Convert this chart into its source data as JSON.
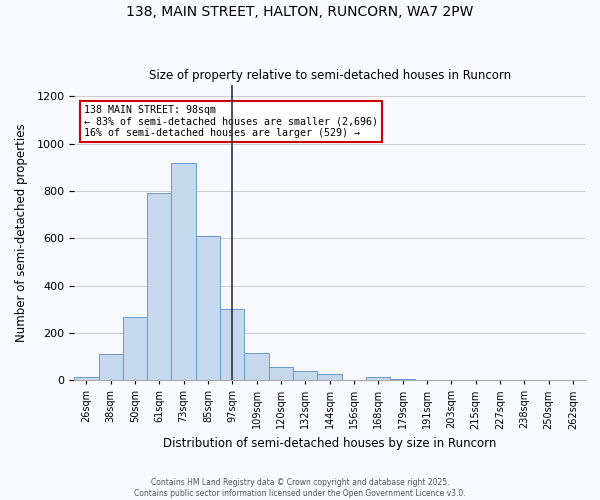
{
  "title": "138, MAIN STREET, HALTON, RUNCORN, WA7 2PW",
  "subtitle": "Size of property relative to semi-detached houses in Runcorn",
  "xlabel": "Distribution of semi-detached houses by size in Runcorn",
  "ylabel": "Number of semi-detached properties",
  "bar_color": "#c5d8ed",
  "bar_edge_color": "#6699cc",
  "vline_color": "#333333",
  "annotation_box_color": "#cc0000",
  "bins": [
    "26sqm",
    "38sqm",
    "50sqm",
    "61sqm",
    "73sqm",
    "85sqm",
    "97sqm",
    "109sqm",
    "120sqm",
    "132sqm",
    "144sqm",
    "156sqm",
    "168sqm",
    "179sqm",
    "191sqm",
    "203sqm",
    "215sqm",
    "227sqm",
    "238sqm",
    "250sqm",
    "262sqm"
  ],
  "values": [
    15,
    110,
    265,
    790,
    920,
    610,
    300,
    115,
    55,
    40,
    25,
    0,
    15,
    3,
    1,
    0,
    0,
    0,
    0,
    0,
    0
  ],
  "vline_x": 6,
  "property_label": "138 MAIN STREET: 98sqm",
  "annotation_line1": "← 83% of semi-detached houses are smaller (2,696)",
  "annotation_line2": "16% of semi-detached houses are larger (529) →",
  "ylim": [
    0,
    1250
  ],
  "yticks": [
    0,
    200,
    400,
    600,
    800,
    1000,
    1200
  ],
  "footer1": "Contains HM Land Registry data © Crown copyright and database right 2025.",
  "footer2": "Contains public sector information licensed under the Open Government Licence v3.0.",
  "background_color": "#f8f8ff",
  "grid_color": "#cccccc"
}
